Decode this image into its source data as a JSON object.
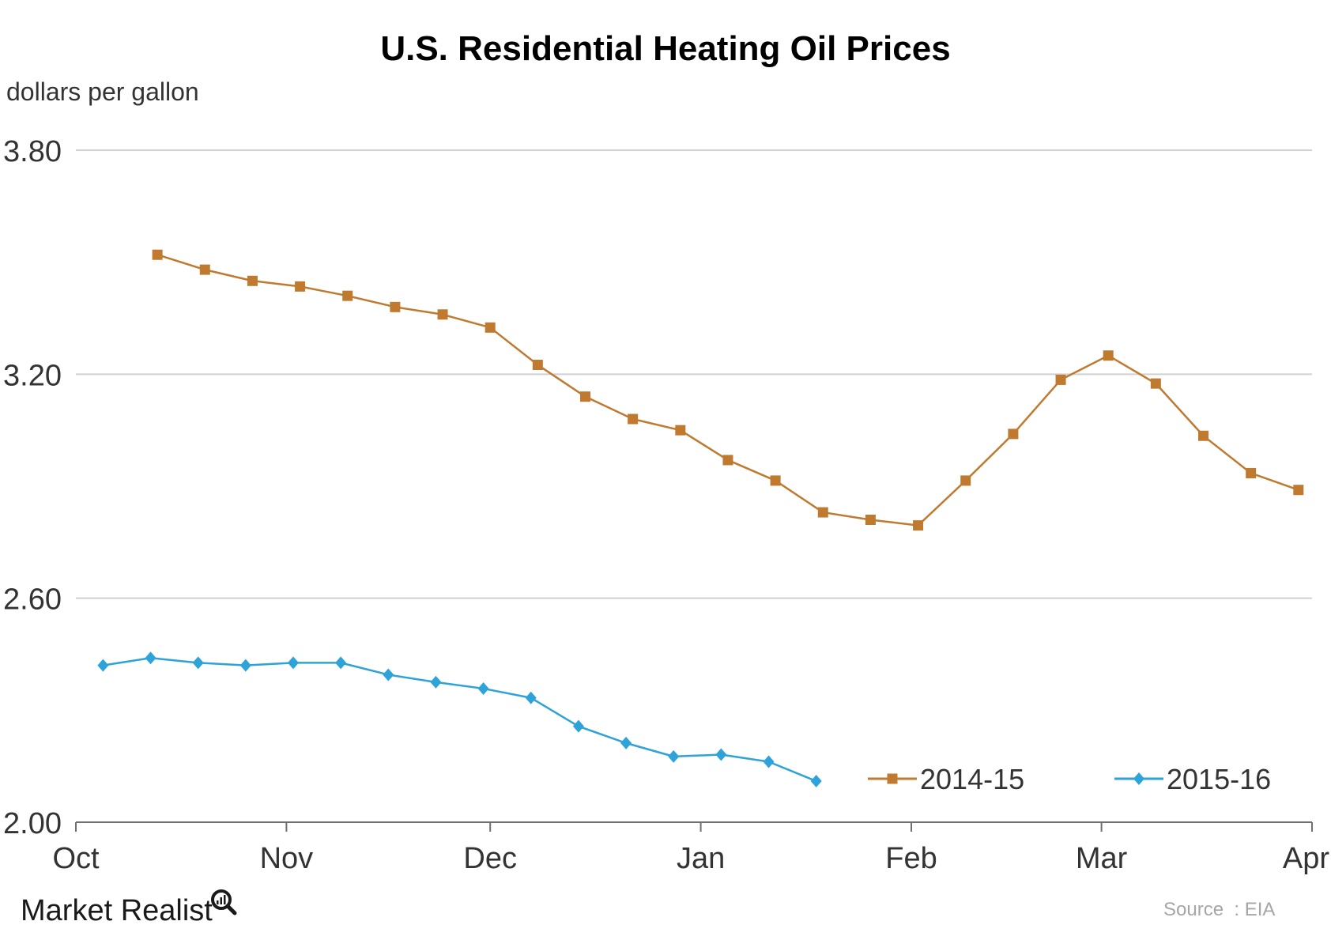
{
  "chart_data": {
    "type": "line",
    "title": "U.S. Residential Heating Oil Prices",
    "ylabel": "dollars per gallon",
    "xlabel": "",
    "ylim": [
      2.0,
      3.8
    ],
    "y_ticks": [
      "2.00",
      "2.60",
      "3.20",
      "3.80"
    ],
    "y_tick_values": [
      2.0,
      2.6,
      3.2,
      3.8
    ],
    "x_tick_labels": [
      "Oct",
      "Nov",
      "Dec",
      "Jan",
      "Feb",
      "Mar",
      "Apr"
    ],
    "x_tick_dates": [
      "10-01",
      "11-01",
      "12-01",
      "01-01",
      "02-01",
      "03-01",
      "04-01"
    ],
    "grid": true,
    "legend_position": "bottom-right",
    "series": [
      {
        "name": "2014-15",
        "color": "#C07A30",
        "marker": "square",
        "x": [
          "10-13",
          "10-20",
          "10-27",
          "11-03",
          "11-10",
          "11-17",
          "11-24",
          "12-01",
          "12-08",
          "12-15",
          "12-22",
          "12-29",
          "01-05",
          "01-12",
          "01-19",
          "01-26",
          "02-02",
          "02-09",
          "02-16",
          "02-23",
          "03-02",
          "03-09",
          "03-16",
          "03-23",
          "03-30"
        ],
        "values": [
          3.52,
          3.48,
          3.45,
          3.435,
          3.41,
          3.38,
          3.36,
          3.325,
          3.225,
          3.14,
          3.08,
          3.05,
          2.97,
          2.915,
          2.83,
          2.81,
          2.795,
          2.915,
          3.04,
          3.185,
          3.25,
          3.175,
          3.035,
          2.935,
          2.89
        ]
      },
      {
        "name": "2015-16",
        "color": "#2EA3D9",
        "marker": "diamond",
        "x": [
          "10-05",
          "10-12",
          "10-19",
          "10-26",
          "11-02",
          "11-09",
          "11-16",
          "11-23",
          "11-30",
          "12-07",
          "12-14",
          "12-21",
          "12-28",
          "01-04",
          "01-11",
          "01-18"
        ],
        "values": [
          2.42,
          2.44,
          2.427,
          2.42,
          2.427,
          2.427,
          2.395,
          2.375,
          2.358,
          2.333,
          2.257,
          2.212,
          2.176,
          2.181,
          2.162,
          2.11
        ]
      }
    ]
  },
  "footer": {
    "brand": "Market Realist",
    "brand_icon": "magnifier-chart-icon",
    "source": "Source  : EIA"
  }
}
